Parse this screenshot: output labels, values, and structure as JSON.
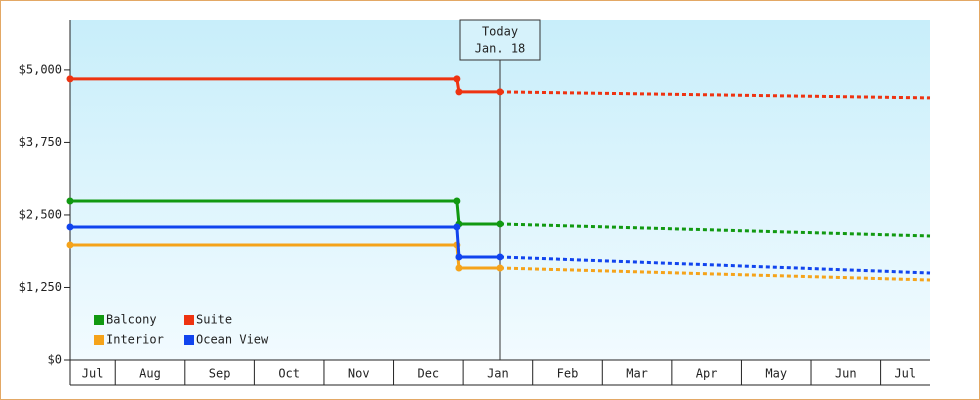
{
  "chart_data": {
    "type": "line",
    "categories": [
      "Jul",
      "Aug",
      "Sep",
      "Oct",
      "Nov",
      "Dec",
      "Jan",
      "Feb",
      "Mar",
      "Apr",
      "May",
      "Jun",
      "Jul"
    ],
    "x": [
      -0.65,
      4.91,
      4.94,
      5.53,
      11.71
    ],
    "xlim": [
      -0.65,
      11.71
    ],
    "xticks": [
      0,
      1,
      2,
      3,
      4,
      5,
      6,
      7,
      8,
      9,
      10,
      11
    ],
    "ylim": [
      0,
      5860
    ],
    "yticks": [
      {
        "value": 0,
        "label": "$0"
      },
      {
        "value": 1250,
        "label": "$1,250"
      },
      {
        "value": 2500,
        "label": "$2,500"
      },
      {
        "value": 3750,
        "label": "$3,750"
      },
      {
        "value": 5000,
        "label": "$5,000"
      }
    ],
    "annotation": {
      "lines": [
        "Today",
        "Jan. 18"
      ],
      "x": 5.53
    },
    "legend": "lower left",
    "series": [
      {
        "name": "Balcony",
        "color": "#119911",
        "values": [
          2741,
          2741,
          2345,
          2345,
          2138
        ]
      },
      {
        "name": "Suite",
        "color": "#ee3311",
        "values": [
          4845,
          4845,
          4621,
          4621,
          4517
        ]
      },
      {
        "name": "Interior",
        "color": "#f5a31a",
        "values": [
          1983,
          1983,
          1586,
          1586,
          1379
        ]
      },
      {
        "name": "Ocean View",
        "color": "#1144ee",
        "values": [
          2293,
          2293,
          1776,
          1776,
          1500
        ]
      }
    ]
  }
}
